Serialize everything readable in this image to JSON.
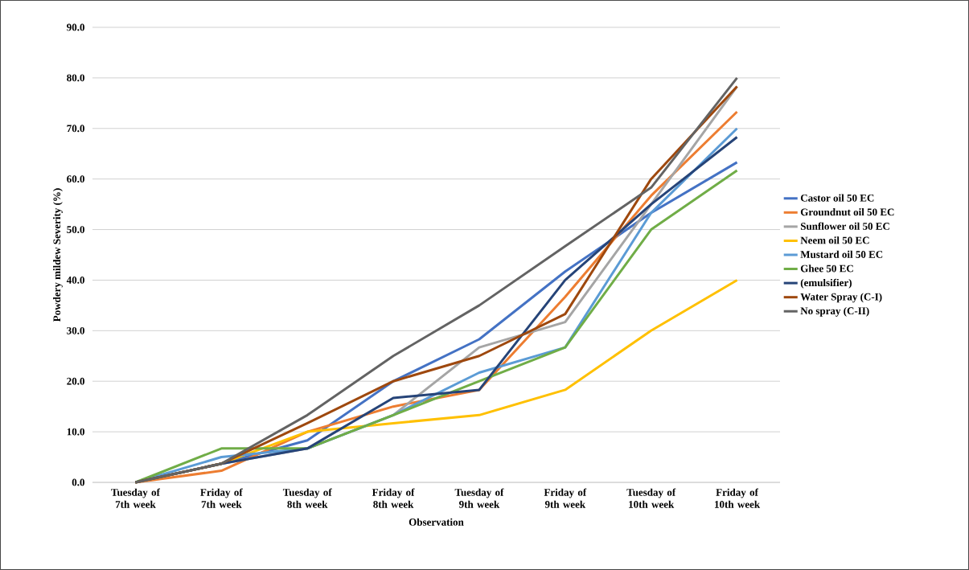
{
  "chart_data": {
    "type": "line",
    "xlabel": "Observation",
    "ylabel": "Powdery mildew Severity (%)",
    "categories": [
      "Tuesday of 7th week",
      "Friday of 7th week",
      "Tuesday of 8th week",
      "Friday of 8th week",
      "Tuesday of 9th week",
      "Friday of 9th week",
      "Tuesday of 10th week",
      "Friday of 10th week"
    ],
    "series": [
      {
        "name": "Castor oil 50 EC",
        "color": "#4472c4",
        "values": [
          0,
          3.7,
          8.3,
          20,
          28.3,
          41.7,
          53.3,
          63.3
        ]
      },
      {
        "name": "Groundnut oil 50 EC",
        "color": "#ed7d31",
        "values": [
          0,
          2.3,
          10,
          15,
          18.3,
          36.7,
          56.7,
          73.3
        ]
      },
      {
        "name": "Sunflower oil 50 EC",
        "color": "#a5a5a5",
        "values": [
          0,
          3.7,
          6.7,
          13.3,
          26.7,
          31.7,
          55,
          78.3
        ]
      },
      {
        "name": "Neem oil 50 EC",
        "color": "#ffc000",
        "values": [
          0,
          3.7,
          10,
          11.7,
          13.3,
          18.3,
          30,
          40
        ]
      },
      {
        "name": "Mustard oil 50 EC",
        "color": "#5b9bd5",
        "values": [
          0,
          5,
          6.7,
          13.3,
          21.7,
          26.7,
          53.3,
          70
        ]
      },
      {
        "name": "Ghee 50 EC",
        "color": "#70ad47",
        "values": [
          0,
          6.7,
          6.7,
          13.3,
          20,
          26.7,
          50,
          61.7
        ]
      },
      {
        "name": "(emulsifier)",
        "color": "#264478",
        "values": [
          0,
          3.7,
          6.7,
          16.7,
          18.3,
          40,
          55,
          68.3
        ]
      },
      {
        "name": "Water Spray (C-I)",
        "color": "#9e480e",
        "values": [
          0,
          3.7,
          11.7,
          20,
          25,
          33.3,
          60,
          78.3
        ]
      },
      {
        "name": "No spray (C-II)",
        "color": "#636363",
        "values": [
          0,
          3.7,
          13.3,
          25,
          35,
          46.7,
          58.3,
          80
        ]
      }
    ],
    "ylim": [
      0,
      90
    ],
    "yticks": [
      {
        "value": 0,
        "label": "0.0"
      },
      {
        "value": 10,
        "label": "10.0"
      },
      {
        "value": 20,
        "label": "20.0"
      },
      {
        "value": 30,
        "label": "30.0"
      },
      {
        "value": 40,
        "label": "40.0"
      },
      {
        "value": 50,
        "label": "50.0"
      },
      {
        "value": 60,
        "label": "60.0"
      },
      {
        "value": 70,
        "label": "70.0"
      },
      {
        "value": 80,
        "label": "80.0"
      },
      {
        "value": 90,
        "label": "90.0"
      }
    ],
    "grid": "y",
    "legend": "right",
    "marker": "none",
    "line_style": "solid"
  }
}
